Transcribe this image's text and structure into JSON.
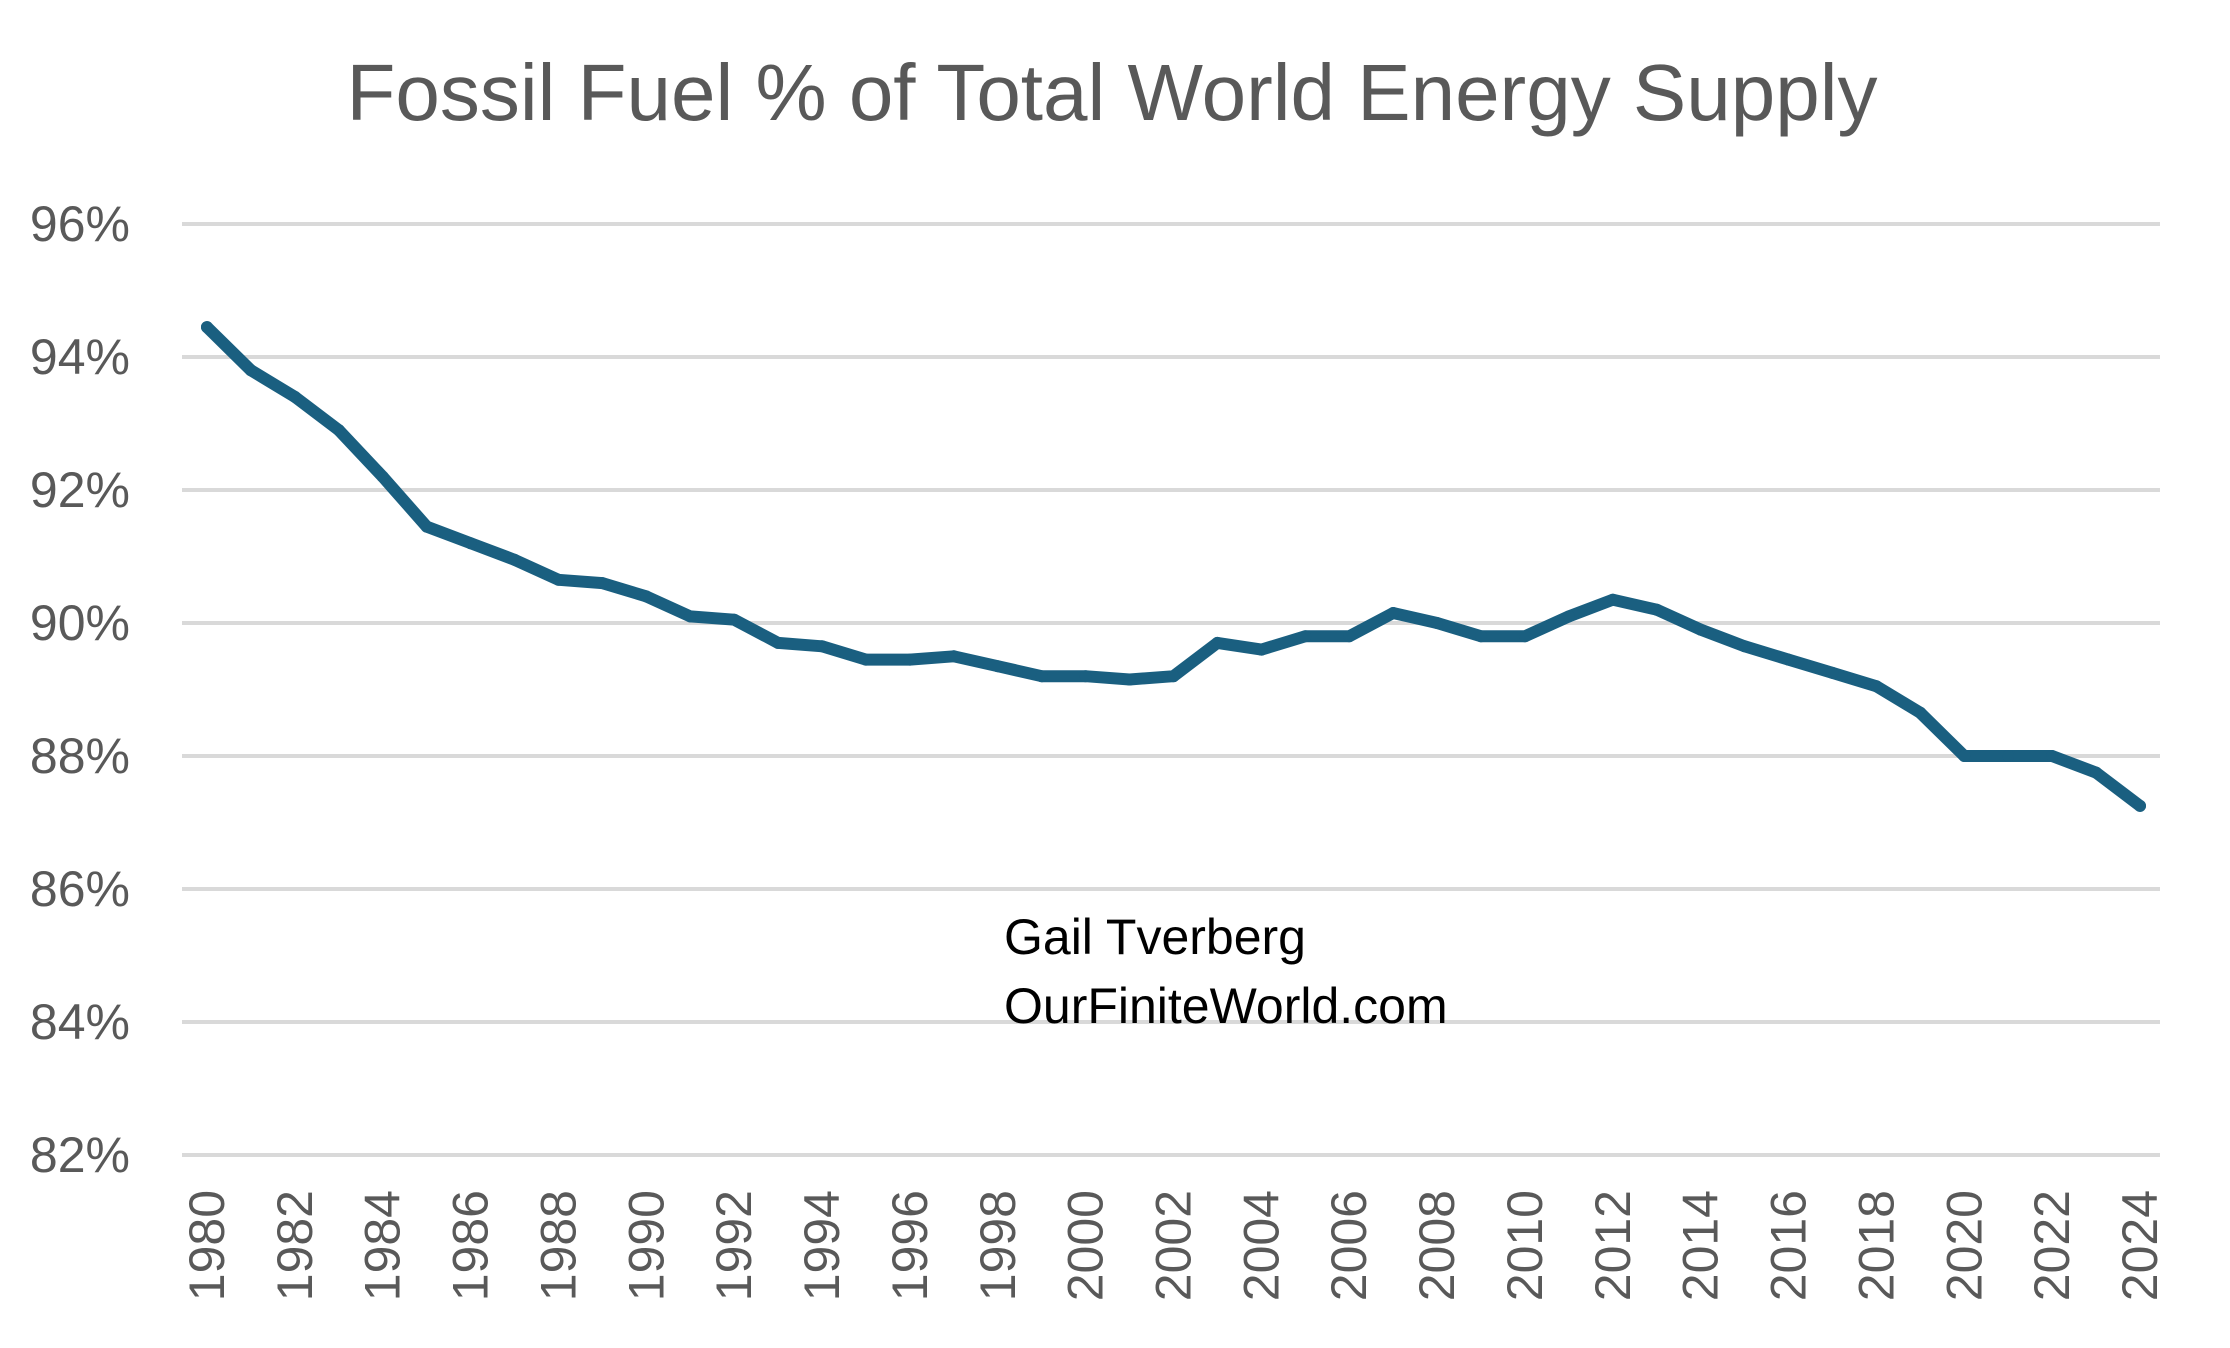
{
  "chart_data": {
    "type": "line",
    "title": "Fossil Fuel % of Total World Energy Supply",
    "xlabel": "",
    "ylabel": "",
    "ylim": [
      82,
      96
    ],
    "yticks": [
      82,
      84,
      86,
      88,
      90,
      92,
      94,
      96
    ],
    "ytick_labels": [
      "82%",
      "84%",
      "86%",
      "88%",
      "90%",
      "92%",
      "94%",
      "96%"
    ],
    "xticks": [
      1980,
      1982,
      1984,
      1986,
      1988,
      1990,
      1992,
      1994,
      1996,
      1998,
      2000,
      2002,
      2004,
      2006,
      2008,
      2010,
      2012,
      2014,
      2016,
      2018,
      2020,
      2022,
      2024
    ],
    "xtick_labels": [
      "1980",
      "1982",
      "1984",
      "1986",
      "1988",
      "1990",
      "1992",
      "1994",
      "1996",
      "1998",
      "2000",
      "2002",
      "2004",
      "2006",
      "2008",
      "2010",
      "2012",
      "2014",
      "2016",
      "2018",
      "2020",
      "2022",
      "2024"
    ],
    "grid": true,
    "legend": "none",
    "series": [
      {
        "color": "#1a5f80",
        "x": [
          1980,
          1981,
          1982,
          1983,
          1984,
          1985,
          1986,
          1987,
          1988,
          1989,
          1990,
          1991,
          1992,
          1993,
          1994,
          1995,
          1996,
          1997,
          1998,
          1999,
          2000,
          2001,
          2002,
          2003,
          2004,
          2005,
          2006,
          2007,
          2008,
          2009,
          2010,
          2011,
          2012,
          2013,
          2014,
          2015,
          2016,
          2017,
          2018,
          2019,
          2020,
          2021,
          2022,
          2023,
          2024
        ],
        "values": [
          94.45,
          93.8,
          93.4,
          92.9,
          92.2,
          91.45,
          91.2,
          90.95,
          90.65,
          90.6,
          90.4,
          90.1,
          90.05,
          89.7,
          89.65,
          89.45,
          89.45,
          89.5,
          89.35,
          89.2,
          89.2,
          89.15,
          89.2,
          89.7,
          89.6,
          89.8,
          89.8,
          90.15,
          90.0,
          89.8,
          89.8,
          90.1,
          90.35,
          90.2,
          89.9,
          89.65,
          89.45,
          89.25,
          89.05,
          88.65,
          88.0,
          88.0,
          88.0,
          87.75,
          87.25
        ]
      }
    ],
    "annotations": [
      "Gail Tverberg",
      "OurFiniteWorld.com"
    ],
    "colors": {
      "line": "#1a5f80",
      "grid": "#d9d9d9",
      "text": "#595959",
      "annotation": "#000000"
    }
  }
}
